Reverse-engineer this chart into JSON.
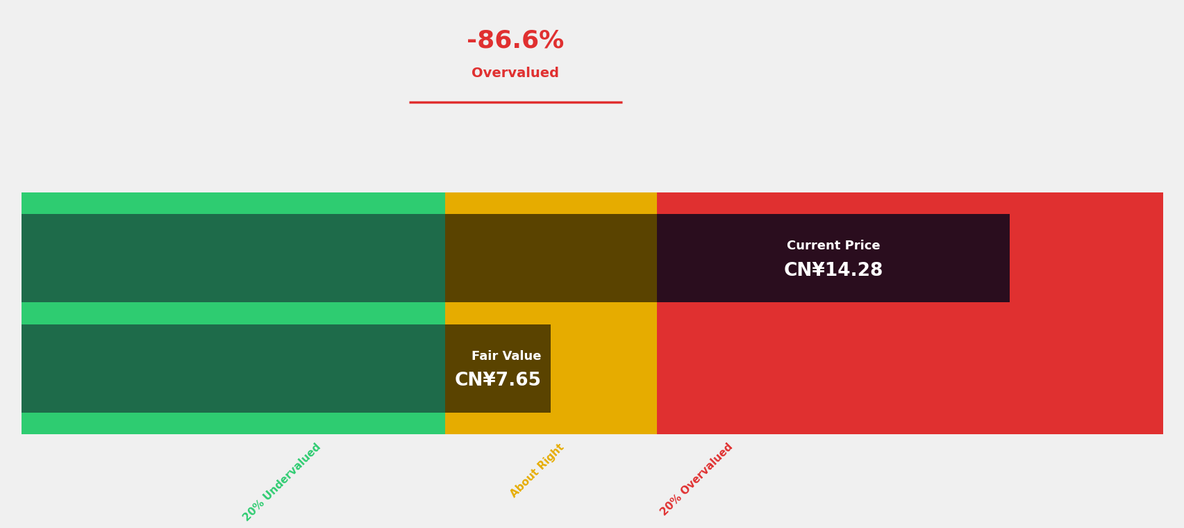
{
  "bg_color": "#f0f0f0",
  "title_pct": "-86.6%",
  "title_label": "Overvalued",
  "title_color": "#e03030",
  "title_line_color": "#e03030",
  "fair_value_label": "Fair Value",
  "fair_value_text": "CN¥7.65",
  "current_price_label": "Current Price",
  "current_price_text": "CN¥14.28",
  "color_green_light": "#2ecc71",
  "color_green_dark": "#1e6b4a",
  "color_yellow": "#e6ac00",
  "color_yellow_dark": "#5a4300",
  "color_red": "#e03030",
  "color_dark_purple": "#2a0d1e",
  "undervalued_label": "20% Undervalued",
  "undervalued_label_color": "#2ecc71",
  "aboutright_label": "About Right",
  "aboutright_label_color": "#e6ac00",
  "overvalued_label": "20% Overvalued",
  "overvalued_label_color": "#e03030",
  "fv": 7.65,
  "fv_low": 6.12,
  "fv_high": 9.18,
  "cp": 14.28,
  "x_max": 16.5
}
